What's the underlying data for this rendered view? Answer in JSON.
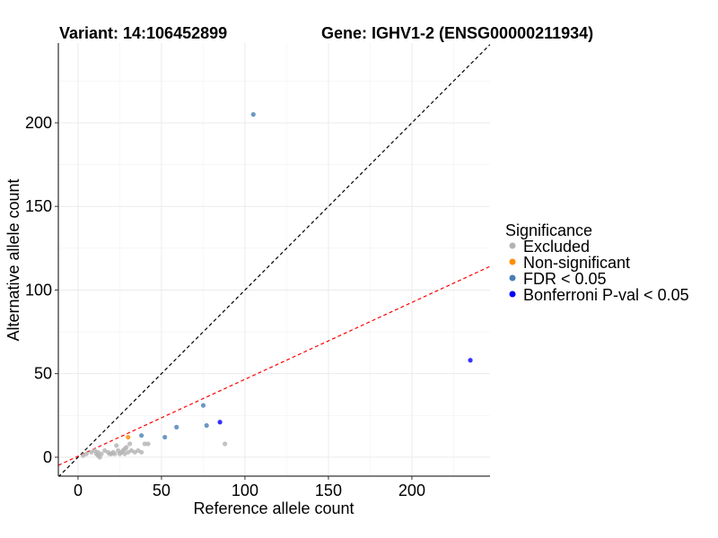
{
  "chart_data": {
    "type": "scatter",
    "title_left": "Variant: 14:106452899",
    "title_right": "Gene: IGHV1-2 (ENSG00000211934)",
    "xlabel": "Reference allele count",
    "ylabel": "Alternative allele count",
    "xlim": [
      -11.8,
      246.8
    ],
    "ylim": [
      -11.3,
      247.7
    ],
    "xticks": [
      0,
      50,
      100,
      150,
      200
    ],
    "yticks": [
      0,
      50,
      100,
      150,
      200
    ],
    "grid": true,
    "legend": {
      "title": "Significance",
      "placement": "right",
      "entries": [
        {
          "label": "Excluded",
          "color": "#b3b3b3"
        },
        {
          "label": "Non-significant",
          "color": "#ff8c00"
        },
        {
          "label": "FDR < 0.05",
          "color": "#4a7eb7"
        },
        {
          "label": "Bonferroni P-val < 0.05",
          "color": "#0000ff"
        }
      ]
    },
    "reference_lines": [
      {
        "name": "identity",
        "slope": 1,
        "intercept": 0,
        "color": "#000000",
        "style": "dashed"
      },
      {
        "name": "fit",
        "slope": 0.46,
        "intercept": 0.6,
        "color": "#ff0000",
        "style": "dashed"
      }
    ],
    "series": [
      {
        "name": "Excluded",
        "color": "#b3b3b3",
        "points": [
          [
            3,
            1
          ],
          [
            5,
            2
          ],
          [
            8,
            3
          ],
          [
            10,
            4
          ],
          [
            11,
            2
          ],
          [
            12,
            1
          ],
          [
            12,
            3
          ],
          [
            13,
            0
          ],
          [
            14,
            2
          ],
          [
            16,
            4
          ],
          [
            18,
            3
          ],
          [
            19,
            2
          ],
          [
            20,
            2
          ],
          [
            21,
            3
          ],
          [
            22,
            2
          ],
          [
            23,
            7
          ],
          [
            24,
            4
          ],
          [
            25,
            2
          ],
          [
            26,
            3
          ],
          [
            27,
            4
          ],
          [
            28,
            2
          ],
          [
            28,
            5
          ],
          [
            29,
            6
          ],
          [
            30,
            3
          ],
          [
            31,
            8
          ],
          [
            32,
            4
          ],
          [
            34,
            3
          ],
          [
            36,
            4
          ],
          [
            38,
            3
          ],
          [
            40,
            8
          ],
          [
            42,
            8
          ],
          [
            88,
            8
          ]
        ]
      },
      {
        "name": "Non-significant",
        "color": "#ff8c00",
        "points": [
          [
            30,
            12
          ]
        ]
      },
      {
        "name": "FDR < 0.05",
        "color": "#4a7eb7",
        "points": [
          [
            38,
            13
          ],
          [
            52,
            12
          ],
          [
            59,
            18
          ],
          [
            75,
            31
          ],
          [
            77,
            19
          ],
          [
            105,
            205
          ]
        ]
      },
      {
        "name": "Bonferroni P-val < 0.05",
        "color": "#0000ff",
        "points": [
          [
            85,
            21
          ],
          [
            235,
            58
          ]
        ]
      }
    ]
  }
}
